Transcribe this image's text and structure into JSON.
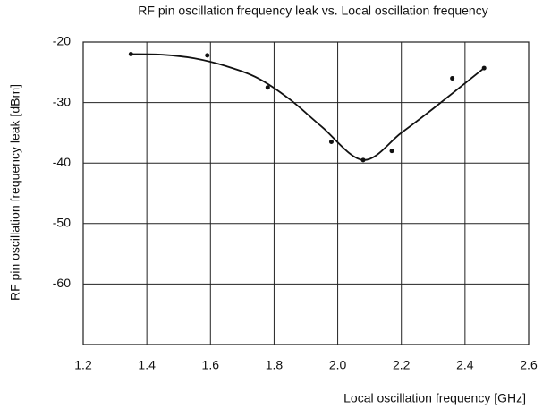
{
  "chart_data": {
    "type": "scatter",
    "title": "RF pin oscillation frequency leak vs. Local oscillation frequency",
    "x_label": "Local oscillation frequency [GHz]",
    "y_label": "RF pin oscillation frequency leak [dBm]",
    "xlim": [
      1.2,
      2.6
    ],
    "ylim": [
      -70,
      -20
    ],
    "xticks": [
      1.2,
      1.4,
      1.6,
      1.8,
      {
        "value": 2,
        "label": "2.0"
      },
      2.2,
      2.4,
      2.6
    ],
    "yticks": [
      -20,
      -30,
      -40,
      -50,
      -60
    ],
    "grid": true,
    "series": [
      {
        "color": "#111111",
        "marker": true,
        "line": false,
        "x": [
          1.35,
          1.59,
          1.78,
          1.98,
          2.08,
          2.17,
          2.36,
          2.46
        ],
        "values": [
          -22,
          -22.2,
          -27.5,
          -36.5,
          -39.5,
          -38,
          -26,
          -24.3
        ]
      },
      {
        "color": "#111111",
        "marker": false,
        "line": true,
        "x": [
          1.35,
          1.45,
          1.55,
          1.65,
          1.75,
          1.85,
          1.95,
          2.08,
          2.2,
          2.3,
          2.46
        ],
        "values": [
          -22,
          -22.1,
          -22.7,
          -24,
          -26,
          -29.5,
          -34,
          -39.5,
          -35,
          -31,
          -24.3
        ]
      }
    ]
  }
}
